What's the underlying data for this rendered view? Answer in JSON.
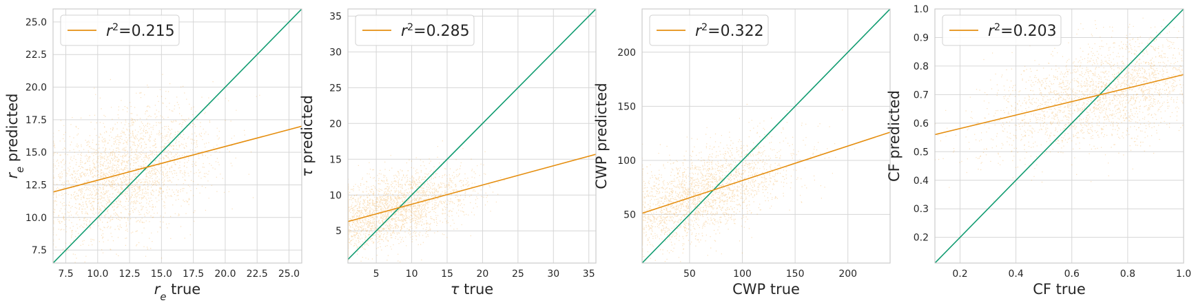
{
  "chart_data": [
    {
      "type": "scatter",
      "xlabel": "r_e true",
      "ylabel": "r_e predicted",
      "xlim": [
        6.5,
        26.0
      ],
      "ylim": [
        6.5,
        26.0
      ],
      "xticks": [
        7.5,
        10.0,
        12.5,
        15.0,
        17.5,
        20.0,
        22.5,
        25.0
      ],
      "yticks": [
        7.5,
        10.0,
        12.5,
        15.0,
        17.5,
        20.0,
        22.5,
        25.0
      ],
      "tick_decimals": 1,
      "legend_label": "r²=0.215",
      "legend_position": "top-left",
      "grid": true,
      "fit_line": {
        "x": [
          6.5,
          26.0
        ],
        "y": [
          11.95,
          17.0
        ]
      },
      "identity_line": {
        "x": [
          6.5,
          26.0
        ],
        "y": [
          6.5,
          26.0
        ]
      },
      "scatter_cloud": {
        "x_center": 12.0,
        "x_spread": 3.4,
        "slope": 0.26,
        "y_spread": 2.3,
        "count": 2600
      }
    },
    {
      "type": "scatter",
      "xlabel": "τ true",
      "ylabel": "τ predicted",
      "xlim": [
        1.0,
        36.0
      ],
      "ylim": [
        0.5,
        36.0
      ],
      "xticks": [
        5,
        10,
        15,
        20,
        25,
        30,
        35
      ],
      "yticks": [
        5,
        10,
        15,
        20,
        25,
        30,
        35
      ],
      "tick_decimals": 0,
      "legend_label": "r²=0.285",
      "legend_position": "top-left",
      "grid": true,
      "fit_line": {
        "x": [
          1.0,
          36.0
        ],
        "y": [
          6.3,
          15.7
        ]
      },
      "identity_line": {
        "x": [
          1.0,
          36.0
        ],
        "y": [
          1.0,
          36.0
        ]
      },
      "scatter_cloud": {
        "x_center": 7.0,
        "x_spread": 5.5,
        "slope": 0.27,
        "y_spread": 2.4,
        "count": 2600
      }
    },
    {
      "type": "scatter",
      "xlabel": "CWP true",
      "ylabel": "CWP predicted",
      "xlim": [
        5,
        240
      ],
      "ylim": [
        5,
        240
      ],
      "xticks": [
        50,
        100,
        150,
        200
      ],
      "yticks": [
        50,
        100,
        150,
        200
      ],
      "tick_decimals": 0,
      "legend_label": "r²=0.322",
      "legend_position": "top-left",
      "grid": true,
      "fit_line": {
        "x": [
          5,
          240
        ],
        "y": [
          51,
          126
        ]
      },
      "identity_line": {
        "x": [
          5,
          240
        ],
        "y": [
          5,
          240
        ]
      },
      "scatter_cloud": {
        "x_center": 55,
        "x_spread": 45,
        "slope": 0.32,
        "y_spread": 20,
        "count": 2600
      }
    },
    {
      "type": "scatter",
      "xlabel": "CF true",
      "ylabel": "CF predicted",
      "xlim": [
        0.11,
        1.0
      ],
      "ylim": [
        0.11,
        1.0
      ],
      "xticks": [
        0.2,
        0.4,
        0.6,
        0.8,
        1.0
      ],
      "yticks": [
        0.2,
        0.3,
        0.4,
        0.5,
        0.6,
        0.7,
        0.8,
        0.9,
        1.0
      ],
      "tick_decimals": 1,
      "legend_label": "r²=0.203",
      "legend_position": "top-left",
      "grid": true,
      "fit_line": {
        "x": [
          0.11,
          1.0
        ],
        "y": [
          0.56,
          0.77
        ]
      },
      "identity_line": {
        "x": [
          0.11,
          1.0
        ],
        "y": [
          0.11,
          1.0
        ]
      },
      "scatter_cloud": {
        "x_center": 0.72,
        "x_spread": 0.22,
        "slope": 0.24,
        "y_spread": 0.09,
        "count": 2600
      }
    }
  ],
  "colors": {
    "scatter": "#f0a030",
    "fit_line": "#e58e0f",
    "identity_line": "#0f9b70",
    "grid": "#d6d6d6",
    "frame": "#cccccc"
  }
}
